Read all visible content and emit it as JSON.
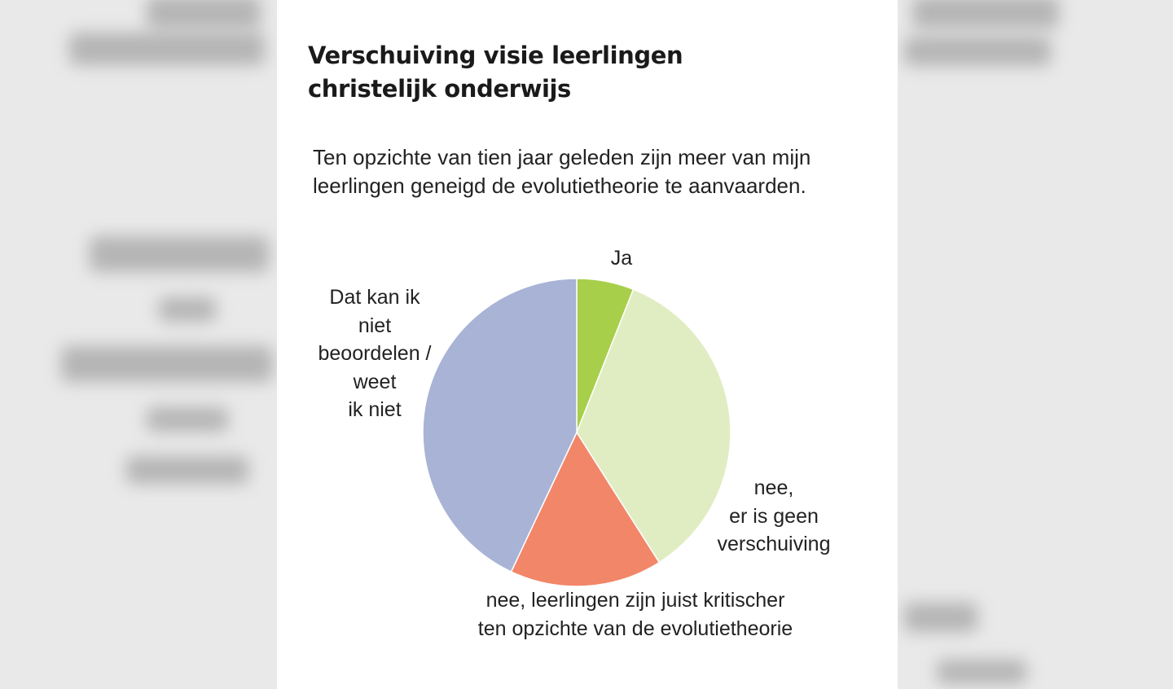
{
  "chart_data": {
    "type": "pie",
    "title": "Verschuiving visie leerlingen christelijk onderwijs",
    "subtitle": "Ten opzichte van tien jaar geleden zijn meer van mijn leerlingen geneigd de evolutietheorie te aanvaarden.",
    "slices": [
      {
        "label": "Ja",
        "value": 6,
        "color": "#a7cf4a"
      },
      {
        "label": "nee,\ner is geen\nverschuiving",
        "value": 35,
        "color": "#e0edc2"
      },
      {
        "label": "nee, leerlingen zijn  juist kritischer\nten opzichte van de evolutietheorie",
        "value": 16,
        "color": "#f28668"
      },
      {
        "label": "Dat kan ik\nniet\nbeoordelen /\nweet\nik niet",
        "value": 43,
        "color": "#a8b3d6"
      }
    ]
  }
}
